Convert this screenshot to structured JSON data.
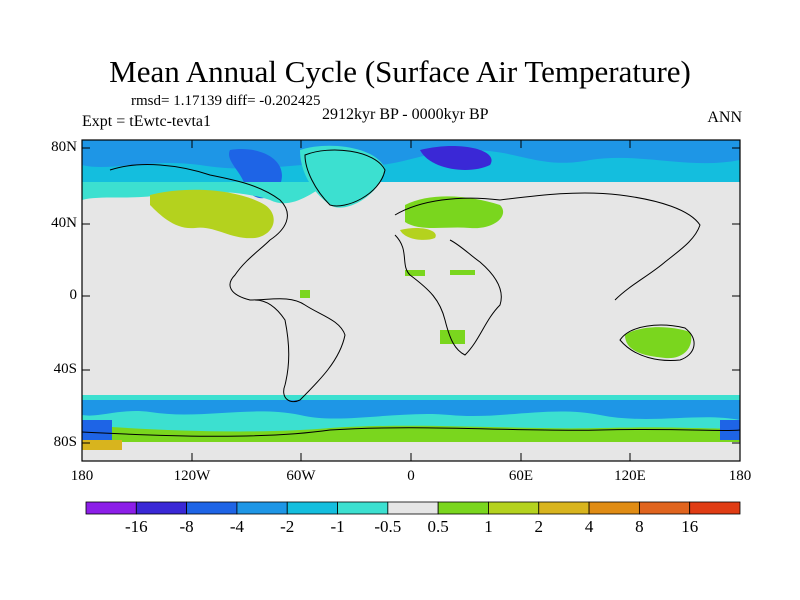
{
  "title": "Mean Annual Cycle (Surface Air Temperature)",
  "stats": "rmsd= 1.17139 diff= -0.202425",
  "experiment": "Expt = tEwtc-tevta1",
  "period": "2912kyr BP - 0000kyr BP",
  "season": "ANN",
  "y_axis_labels": [
    "80N",
    "40N",
    "0",
    "40S",
    "80S"
  ],
  "x_axis_labels": [
    "180",
    "120W",
    "60W",
    "0",
    "60E",
    "120E",
    "180"
  ],
  "colorbar": {
    "labels": [
      "-16",
      "-8",
      "-4",
      "-2",
      "-1",
      "-0.5",
      "0.5",
      "1",
      "2",
      "4",
      "8",
      "16"
    ],
    "colors": [
      "#8c1ee8",
      "#3a28d6",
      "#1e64e6",
      "#1e96e6",
      "#14bede",
      "#3ce0d0",
      "#e6e6e6",
      "#7ad61e",
      "#b4d21e",
      "#d8b41e",
      "#e08c14",
      "#e0641e",
      "#e03c14"
    ]
  },
  "colors": {
    "background_region": "#e6e6e6",
    "coast": "#000000"
  }
}
